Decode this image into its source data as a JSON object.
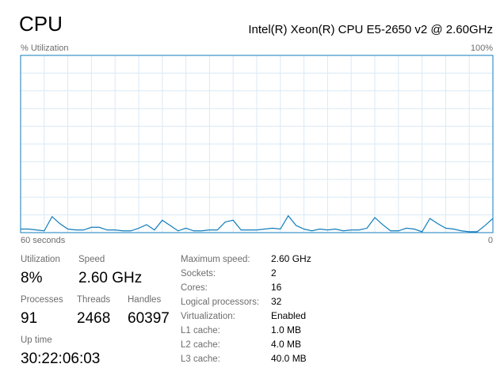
{
  "chart_data": {
    "type": "line",
    "title": "CPU",
    "subtitle": "Intel(R) Xeon(R) CPU E5-2650 v2 @ 2.60GHz",
    "y_label": "% Utilization",
    "x": [
      60,
      59,
      58,
      57,
      56,
      55,
      54,
      53,
      52,
      51,
      50,
      49,
      48,
      47,
      46,
      45,
      44,
      43,
      42,
      41,
      40,
      39,
      38,
      37,
      36,
      35,
      34,
      33,
      32,
      31,
      30,
      29,
      28,
      27,
      26,
      25,
      24,
      23,
      22,
      21,
      20,
      19,
      18,
      17,
      16,
      15,
      14,
      13,
      12,
      11,
      10,
      9,
      8,
      7,
      6,
      5,
      4,
      3,
      2,
      1,
      0
    ],
    "series": [
      {
        "color": "#117dbb",
        "values": [
          2,
          2,
          1.5,
          1,
          9,
          5,
          2,
          1.5,
          1.5,
          3,
          3,
          1.5,
          1.5,
          1,
          1,
          2.5,
          4.5,
          1.5,
          7,
          4,
          1,
          2.5,
          1,
          1,
          1.5,
          1.5,
          6,
          7,
          1.5,
          1.5,
          1.5,
          2,
          2.5,
          2,
          9.5,
          4,
          2,
          1,
          2,
          1.5,
          2,
          1,
          1.5,
          1.5,
          2.5,
          8.5,
          4.5,
          1,
          1,
          2.5,
          2,
          0.5,
          8,
          5,
          2.5,
          2,
          1,
          0.5,
          0.5,
          4,
          8
        ]
      }
    ],
    "xlim": [
      60,
      0
    ],
    "xticks": [
      {
        "value": 60,
        "label": "60 seconds"
      },
      0
    ],
    "ylim": [
      0,
      100
    ],
    "yticks": [
      {
        "value": 100,
        "label": "100%"
      }
    ],
    "grid": true
  },
  "stats": {
    "utilization": {
      "label": "Utilization",
      "value": "8%"
    },
    "speed": {
      "label": "Speed",
      "value": "2.60 GHz"
    },
    "processes": {
      "label": "Processes",
      "value": "91"
    },
    "threads": {
      "label": "Threads",
      "value": "2468"
    },
    "handles": {
      "label": "Handles",
      "value": "60397"
    },
    "uptime": {
      "label": "Up time",
      "value": "30:22:06:03"
    }
  },
  "details": [
    {
      "label": "Maximum speed:",
      "value": "2.60 GHz"
    },
    {
      "label": "Sockets:",
      "value": "2"
    },
    {
      "label": "Cores:",
      "value": "16"
    },
    {
      "label": "Logical processors:",
      "value": "32"
    },
    {
      "label": "Virtualization:",
      "value": "Enabled"
    },
    {
      "label": "L1 cache:",
      "value": "1.0 MB"
    },
    {
      "label": "L2 cache:",
      "value": "4.0 MB"
    },
    {
      "label": "L3 cache:",
      "value": "40.0 MB"
    }
  ]
}
